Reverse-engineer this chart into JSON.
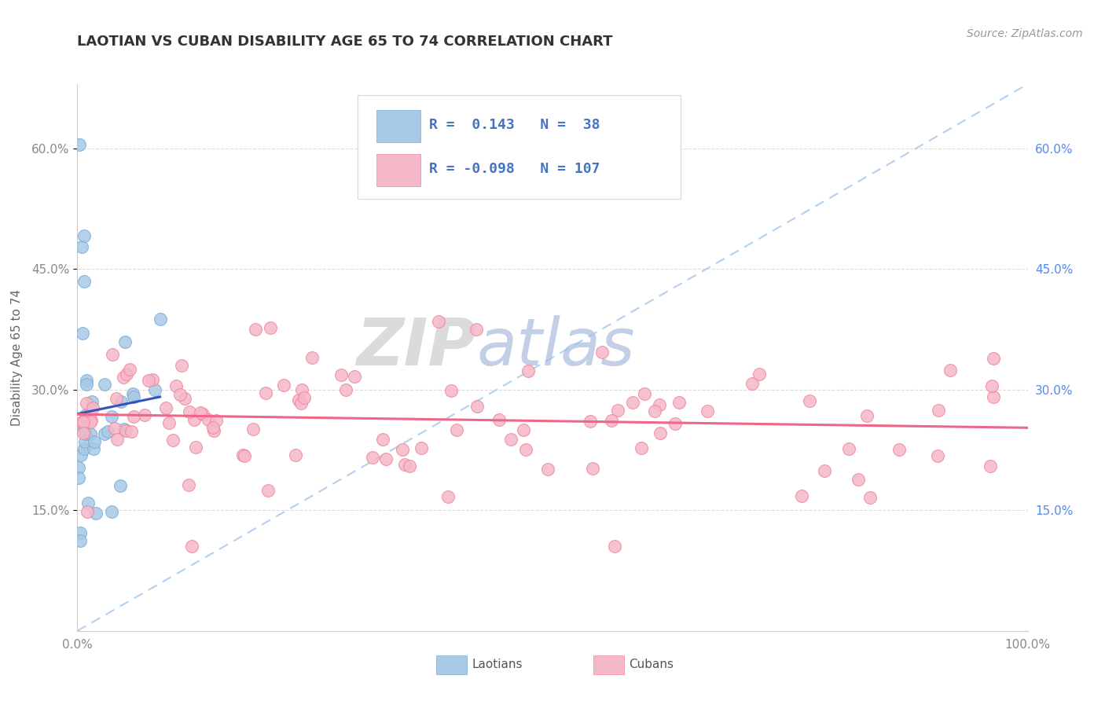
{
  "title": "LAOTIAN VS CUBAN DISABILITY AGE 65 TO 74 CORRELATION CHART",
  "source": "Source: ZipAtlas.com",
  "ylabel": "Disability Age 65 to 74",
  "xlim": [
    0.0,
    1.0
  ],
  "ylim": [
    0.0,
    0.68
  ],
  "yticks": [
    0.15,
    0.3,
    0.45,
    0.6
  ],
  "ytick_labels_left": [
    "15.0%",
    "30.0%",
    "45.0%",
    "60.0%"
  ],
  "ytick_labels_right": [
    "15.0%",
    "30.0%",
    "45.0%",
    "60.0%"
  ],
  "xtick_labels": [
    "0.0%",
    "100.0%"
  ],
  "laotian_R": 0.143,
  "laotian_N": 38,
  "cuban_R": -0.098,
  "cuban_N": 107,
  "laotian_color": "#A8C8E8",
  "laotian_edge_color": "#7BAFD4",
  "laotian_line_color": "#3355BB",
  "cuban_color": "#F5B8C8",
  "cuban_edge_color": "#EE8899",
  "cuban_line_color": "#EE6688",
  "dash_line_color": "#AACCEE",
  "background_color": "#FFFFFF",
  "grid_color": "#DDDDDD",
  "title_color": "#333333",
  "source_color": "#999999",
  "left_tick_color": "#888888",
  "right_tick_color": "#5588EE",
  "watermark_zip_color": "#CCCCCC",
  "watermark_atlas_color": "#AABBDD",
  "legend_border_color": "#DDDDDD",
  "legend_text_color": "#4472C4",
  "bottom_legend_text_color": "#555555"
}
